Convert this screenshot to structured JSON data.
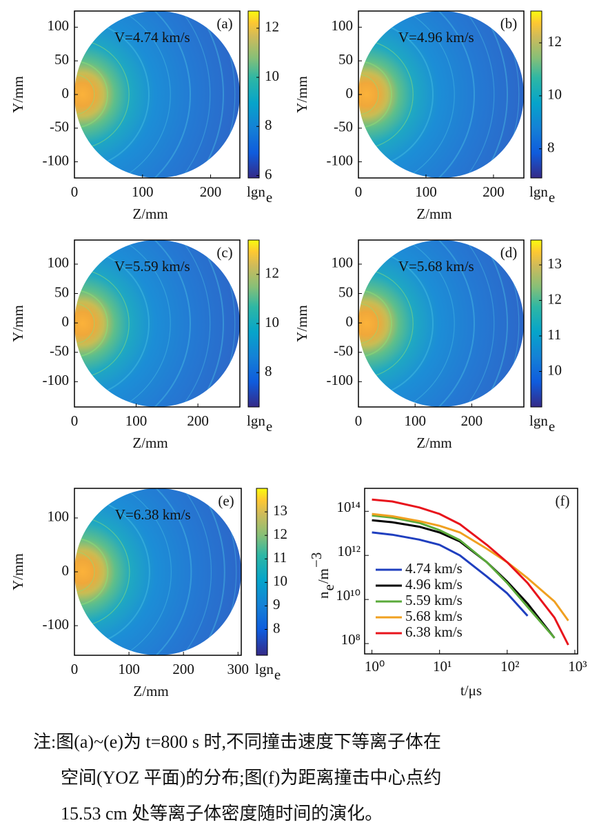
{
  "chart_data": [
    {
      "type": "heatmap",
      "label": "(a)",
      "annotation": "V=4.74 km/s",
      "xlabel": "Z/mm",
      "ylabel": "Y/mm",
      "xlim": [
        0,
        243
      ],
      "ylim": [
        -124,
        124
      ],
      "xticks": [
        0,
        100,
        200
      ],
      "yticks": [
        -100,
        -50,
        0,
        50,
        100
      ],
      "clim": [
        5.9,
        12.7
      ],
      "cticks": [
        6,
        8,
        10,
        12
      ],
      "colorbar_label": "lgn",
      "colorbar_label_sub": "e"
    },
    {
      "type": "heatmap",
      "label": "(b)",
      "annotation": "V=4.96 km/s",
      "xlabel": "Z/mm",
      "ylabel": "Y/mm",
      "xlim": [
        0,
        245
      ],
      "ylim": [
        -124,
        124
      ],
      "xticks": [
        0,
        100,
        200
      ],
      "yticks": [
        -100,
        -50,
        0,
        50,
        100
      ],
      "clim": [
        6.9,
        13.2
      ],
      "cticks": [
        8,
        10,
        12
      ],
      "colorbar_label": "lgn",
      "colorbar_label_sub": "e"
    },
    {
      "type": "heatmap",
      "label": "(c)",
      "annotation": "V=5.59 km/s",
      "xlabel": "Z/mm",
      "ylabel": "Y/mm",
      "xlim": [
        0,
        268
      ],
      "ylim": [
        -143,
        141
      ],
      "xticks": [
        0,
        100,
        200
      ],
      "yticks": [
        -100,
        -50,
        0,
        50,
        100
      ],
      "clim": [
        6.6,
        13.4
      ],
      "cticks": [
        8,
        10,
        12
      ],
      "colorbar_label": "lgn",
      "colorbar_label_sub": "e"
    },
    {
      "type": "heatmap",
      "label": "(d)",
      "annotation": "V=5.68 km/s",
      "xlabel": "Z/mm",
      "ylabel": "Y/mm",
      "xlim": [
        0,
        292
      ],
      "ylim": [
        -143,
        141
      ],
      "xticks": [
        0,
        100,
        200
      ],
      "yticks": [
        -100,
        -50,
        0,
        50,
        100
      ],
      "clim": [
        9.0,
        13.7
      ],
      "cticks": [
        10,
        11,
        12,
        13
      ],
      "colorbar_label": "lgn",
      "colorbar_label_sub": "e"
    },
    {
      "type": "heatmap",
      "label": "(e)",
      "annotation": "V=6.38 km/s",
      "xlabel": "Z/mm",
      "ylabel": "Y/mm",
      "xlim": [
        0,
        306
      ],
      "ylim": [
        -155,
        155
      ],
      "xticks": [
        0,
        100,
        200,
        300
      ],
      "yticks": [
        -100,
        0,
        100
      ],
      "clim": [
        6.9,
        14.0
      ],
      "cticks": [
        8,
        9,
        10,
        11,
        12,
        13
      ],
      "colorbar_label": "lgn",
      "colorbar_label_sub": "e"
    },
    {
      "type": "line",
      "label": "(f)",
      "xlabel": "t/μs",
      "ylabel": [
        "n",
        "e",
        "/m",
        "−3"
      ],
      "xscale": "log",
      "yscale": "log",
      "legend": "lower left",
      "xlim": [
        0.78,
        1100
      ],
      "ylim": [
        34000000.0,
        1100000000000000.0
      ],
      "xticks": [
        {
          "value": 1,
          "label": "10⁰"
        },
        {
          "value": 10,
          "label": "10¹"
        },
        {
          "value": 100,
          "label": "10²"
        },
        {
          "value": 1000,
          "label": "10³"
        }
      ],
      "yticks": [
        {
          "value": 100000000.0,
          "label": "10⁸"
        },
        {
          "value": 10000000000.0,
          "label": "10¹⁰"
        },
        {
          "value": 1000000000000.0,
          "label": "10¹²"
        },
        {
          "value": 100000000000000.0,
          "label": "10¹⁴"
        }
      ],
      "x": [
        1,
        2,
        5,
        10,
        20,
        50,
        100,
        200,
        500,
        800
      ],
      "series": [
        {
          "name": "4.74 km/s",
          "color": "#1f3fbf",
          "values": [
            11000000000000.0,
            8700000000000.0,
            5200000000000.0,
            3000000000000.0,
            1000000000000.0,
            110000000000.0,
            19000000000.0,
            1800000000.0,
            null,
            null
          ]
        },
        {
          "name": "4.96 km/s",
          "color": "#000000",
          "values": [
            39000000000000.0,
            32000000000000.0,
            20000000000000.0,
            11000000000000.0,
            4300000000000.0,
            490000000000.0,
            65000000000.0,
            6500000000.0,
            180000000.0,
            null
          ]
        },
        {
          "name": "5.59 km/s",
          "color": "#5aaa3a",
          "values": [
            65000000000000.0,
            52000000000000.0,
            30000000000000.0,
            14000000000000.0,
            4900000000000.0,
            490000000000.0,
            56000000000.0,
            4600000000.0,
            180000000.0,
            null
          ]
        },
        {
          "name": "5.68 km/s",
          "color": "#f0a020",
          "values": [
            76000000000000.0,
            60000000000000.0,
            36000000000000.0,
            22000000000000.0,
            11000000000000.0,
            2000000000000.0,
            490000000000.0,
            93000000000.0,
            8100000000.0,
            1100000000.0
          ]
        },
        {
          "name": "6.38 km/s",
          "color": "#e8141c",
          "values": [
            340000000000000.0,
            280000000000000.0,
            150000000000000.0,
            76000000000000.0,
            26000000000000.0,
            3000000000000.0,
            490000000000.0,
            56000000000.0,
            1500000000.0,
            87000000.0
          ]
        }
      ]
    }
  ],
  "note": {
    "lines": [
      "注:图(a)~(e)为 t=800 s 时,不同撞击速度下等离子体在",
      "空间(YOZ 平面)的分布;图(f)为距离撞击中心点约",
      "15.53 cm 处等离子体密度随时间的演化。"
    ]
  }
}
